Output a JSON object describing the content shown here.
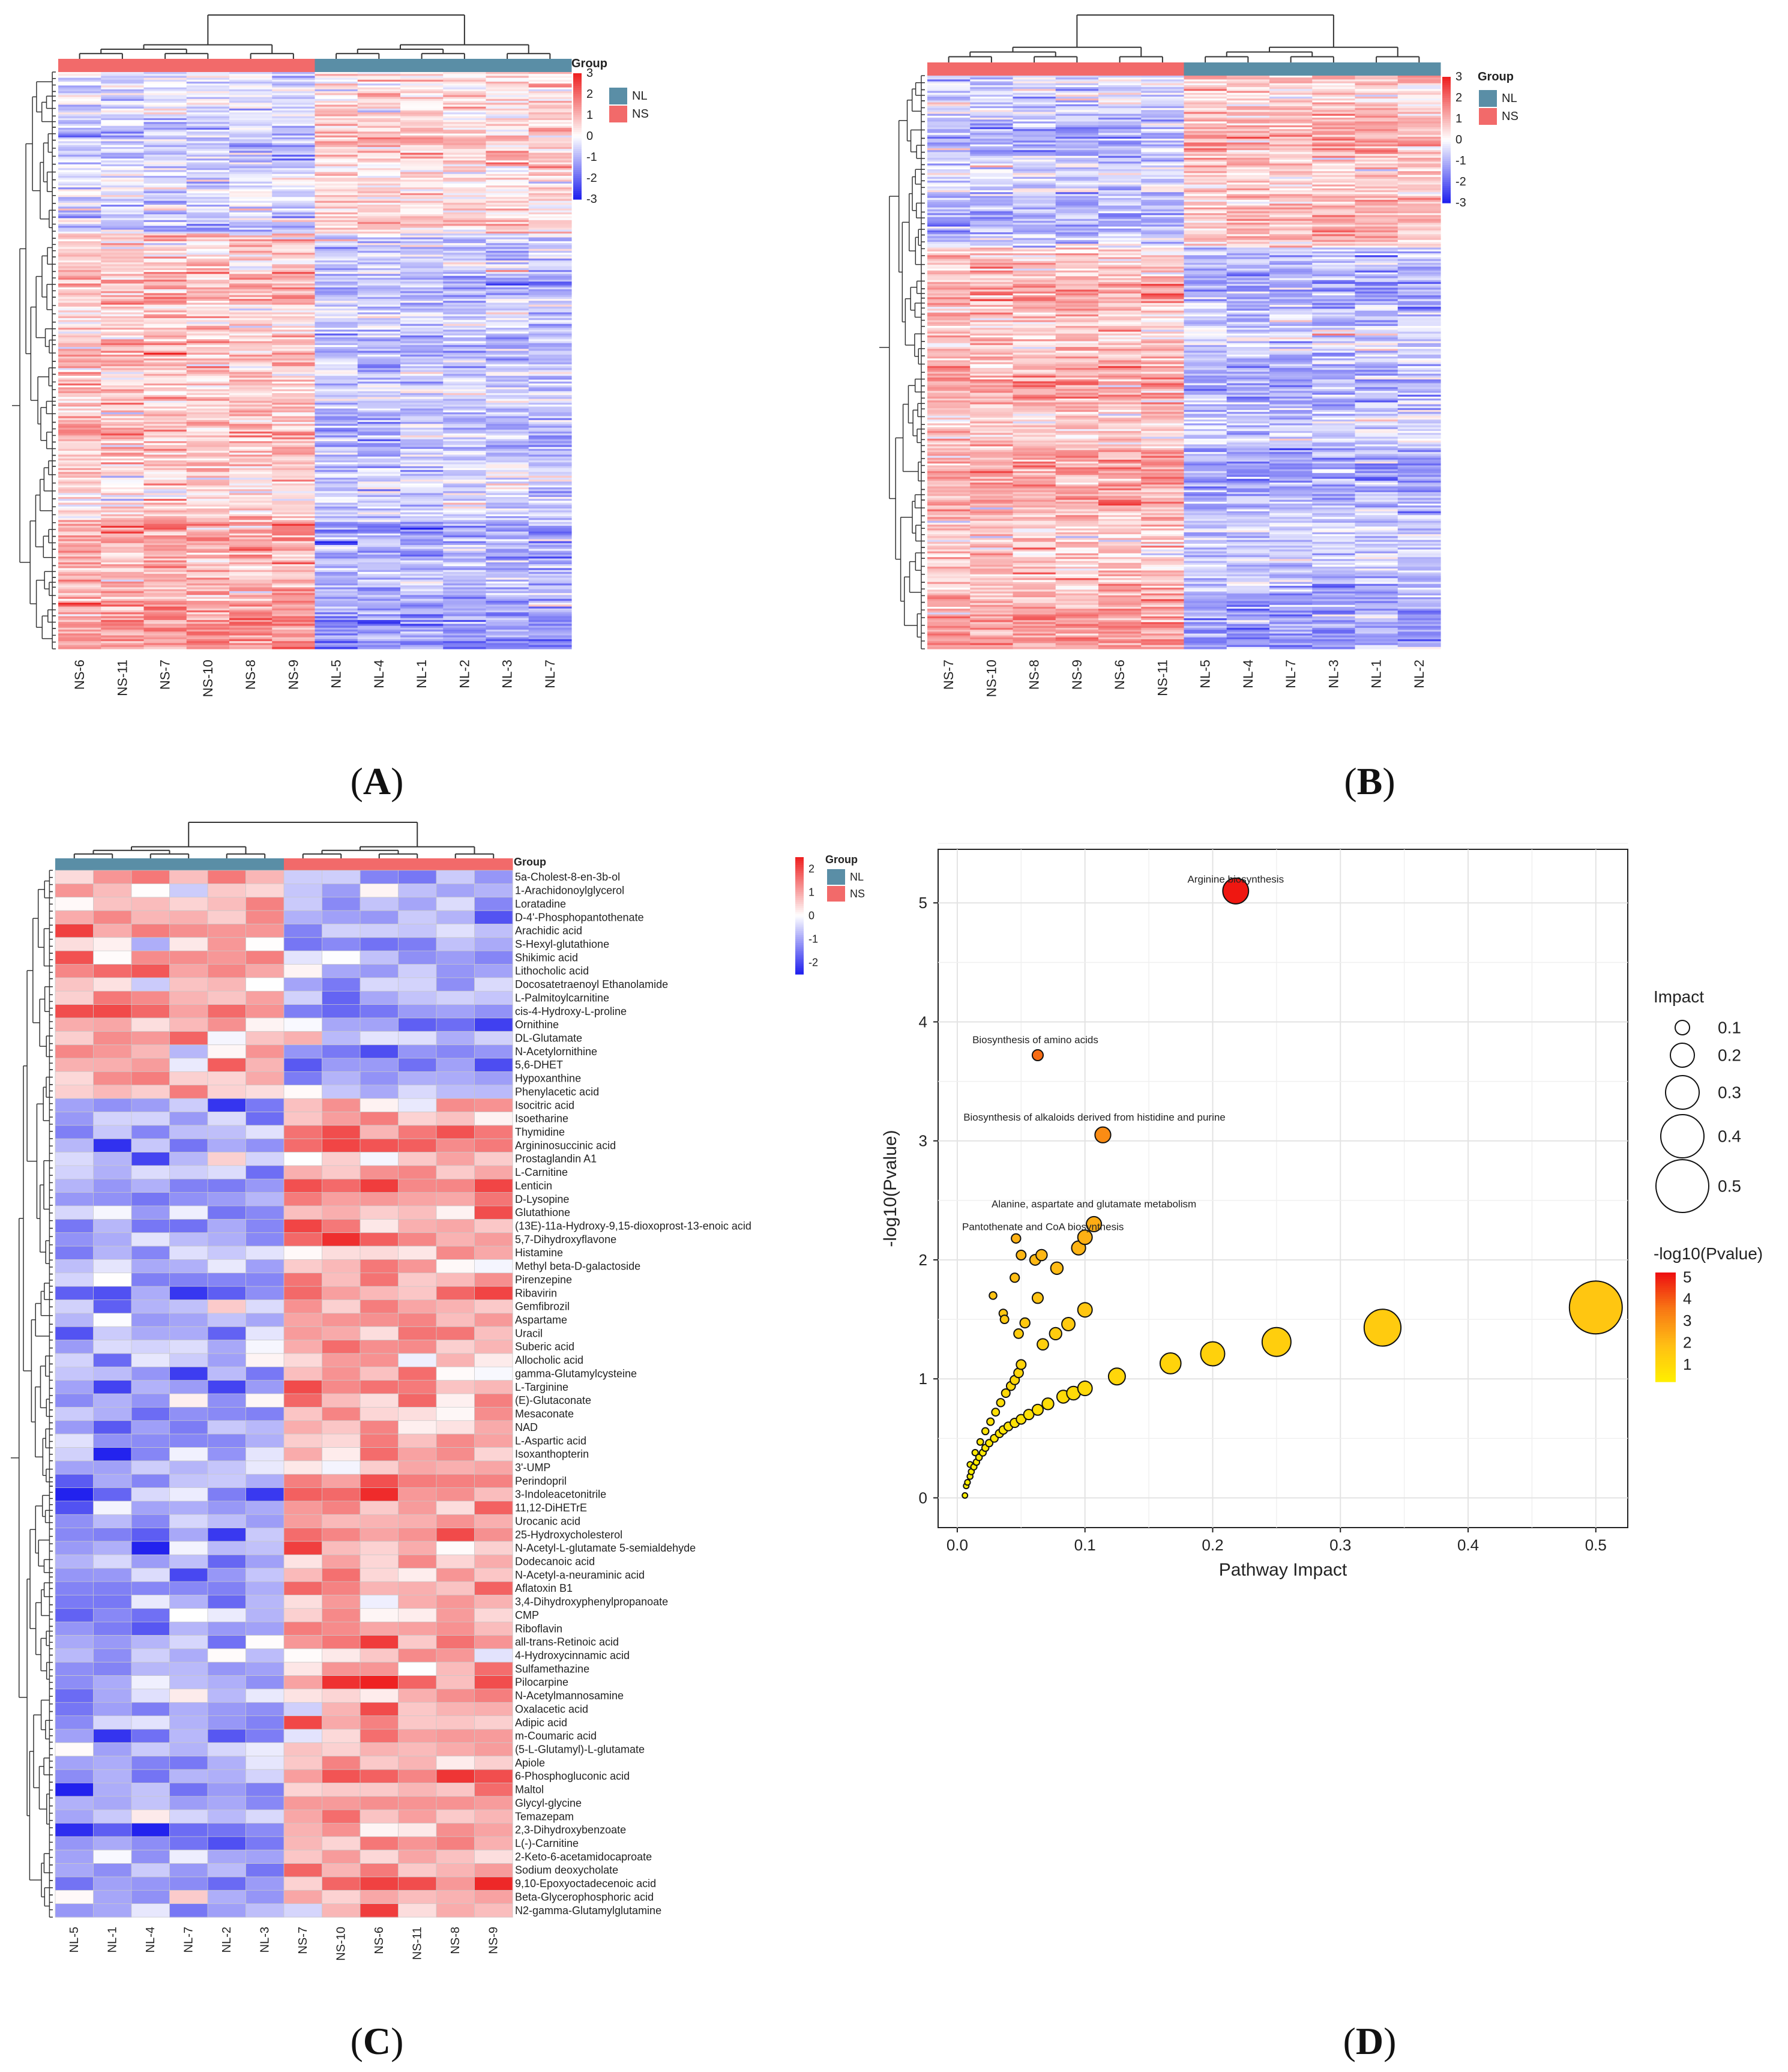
{
  "panels": {
    "A": "A",
    "B": "B",
    "C": "C",
    "D": "D"
  },
  "colors": {
    "high": "#ee2222",
    "mid": "#ffffff",
    "low": "#2222ee",
    "NL": "#5a8ea6",
    "NS": "#f26a6a",
    "bubble_low": "#ffee00",
    "bubble_high": "#ee1111"
  },
  "chart_data": [
    {
      "id": "A",
      "type": "heatmap",
      "columns": [
        "NS-6",
        "NS-11",
        "NS-7",
        "NS-10",
        "NS-8",
        "NS-9",
        "NL-5",
        "NL-4",
        "NL-1",
        "NL-2",
        "NL-3",
        "NL-7"
      ],
      "column_groups": [
        "NS",
        "NS",
        "NS",
        "NS",
        "NS",
        "NS",
        "NL",
        "NL",
        "NL",
        "NL",
        "NL",
        "NL"
      ],
      "annotation_title": "Group",
      "legend_groups": [
        "NL",
        "NS"
      ],
      "scale": {
        "min": -3,
        "max": 3,
        "ticks": [
          "3",
          "2",
          "1",
          "0",
          "-1",
          "-2",
          "-3"
        ]
      }
    },
    {
      "id": "B",
      "type": "heatmap",
      "columns": [
        "NS-7",
        "NS-10",
        "NS-8",
        "NS-9",
        "NS-6",
        "NS-11",
        "NL-5",
        "NL-4",
        "NL-7",
        "NL-3",
        "NL-1",
        "NL-2"
      ],
      "column_groups": [
        "NS",
        "NS",
        "NS",
        "NS",
        "NS",
        "NS",
        "NL",
        "NL",
        "NL",
        "NL",
        "NL",
        "NL"
      ],
      "annotation_title": "Group",
      "legend_groups": [
        "NL",
        "NS"
      ],
      "scale": {
        "min": -3,
        "max": 3,
        "ticks": [
          "3",
          "2",
          "1",
          "0",
          "-1",
          "-2",
          "-3"
        ]
      }
    },
    {
      "id": "C",
      "type": "heatmap",
      "columns": [
        "NL-5",
        "NL-1",
        "NL-4",
        "NL-7",
        "NL-2",
        "NL-3",
        "NS-7",
        "NS-10",
        "NS-6",
        "NS-11",
        "NS-8",
        "NS-9"
      ],
      "column_groups": [
        "NL",
        "NL",
        "NL",
        "NL",
        "NL",
        "NL",
        "NS",
        "NS",
        "NS",
        "NS",
        "NS",
        "NS"
      ],
      "annotation_title": "Group",
      "legend_groups": [
        "NL",
        "NS"
      ],
      "scale": {
        "min": -2.5,
        "max": 2.5,
        "ticks": [
          "2",
          "1",
          "0",
          "-1",
          "-2"
        ]
      },
      "rows": [
        "5a-Cholest-8-en-3b-ol",
        "1-Arachidonoylglycerol",
        "Loratadine",
        "D-4'-Phosphopantothenate",
        "Arachidic acid",
        "S-Hexyl-glutathione",
        "Shikimic acid",
        "Lithocholic acid",
        "Docosatetraenoyl Ethanolamide",
        "L-Palmitoylcarnitine",
        "cis-4-Hydroxy-L-proline",
        "Ornithine",
        "DL-Glutamate",
        "N-Acetylornithine",
        "5,6-DHET",
        "Hypoxanthine",
        "Phenylacetic acid",
        "Isocitric acid",
        "Isoetharine",
        "Thymidine",
        "Argininosuccinic acid",
        "Prostaglandin A1",
        "L-Carnitine",
        "Lenticin",
        "D-Lysopine",
        "Glutathione",
        "(13E)-11a-Hydroxy-9,15-dioxoprost-13-enoic acid",
        "5,7-Dihydroxyflavone",
        "Histamine",
        "Methyl beta-D-galactoside",
        "Pirenzepine",
        "Ribavirin",
        "Gemfibrozil",
        "Aspartame",
        "Uracil",
        "Suberic acid",
        "Allocholic acid",
        "gamma-Glutamylcysteine",
        "L-Targinine",
        "(E)-Glutaconate",
        "Mesaconate",
        "NAD",
        "L-Aspartic acid",
        "Isoxanthopterin",
        "3'-UMP",
        "Perindopril",
        "3-Indoleacetonitrile",
        "11,12-DiHETrE",
        "Urocanic acid",
        "25-Hydroxycholesterol",
        "N-Acetyl-L-glutamate 5-semialdehyde",
        "Dodecanoic acid",
        "N-Acetyl-a-neuraminic acid",
        "Aflatoxin B1",
        "3,4-Dihydroxyphenylpropanoate",
        "CMP",
        "Riboflavin",
        "all-trans-Retinoic acid",
        "4-Hydroxycinnamic acid",
        "Sulfamethazine",
        "Pilocarpine",
        "N-Acetylmannosamine",
        "Oxalacetic acid",
        "Adipic acid",
        "m-Coumaric acid",
        "(5-L-Glutamyl)-L-glutamate",
        "Apiole",
        "6-Phosphogluconic acid",
        "Maltol",
        "Glycyl-glycine",
        "Temazepam",
        "2,3-Dihydroxybenzoate",
        "L(-)-Carnitine",
        "2-Keto-6-acetamidocaproate",
        "Sodium deoxycholate",
        "9,10-Epoxyoctadecenoic acid",
        "Beta-Glycerophosphoric acid",
        "N2-gamma-Glutamylglutamine"
      ],
      "up_in_NL_rows": 17
    },
    {
      "id": "D",
      "type": "scatter",
      "xlabel": "Pathway Impact",
      "ylabel": "-log10(Pvalue)",
      "xlim": [
        -0.015,
        0.525
      ],
      "ylim": [
        -0.25,
        5.45
      ],
      "xticks": [
        0.0,
        0.1,
        0.2,
        0.3,
        0.4,
        0.5
      ],
      "xtick_labels": [
        "0.0",
        "0.1",
        "0.2",
        "0.3",
        "0.4",
        "0.5"
      ],
      "yticks": [
        0,
        1,
        2,
        3,
        4,
        5
      ],
      "ytick_labels": [
        "0",
        "1",
        "2",
        "3",
        "4",
        "5"
      ],
      "size_legend": {
        "title": "Impact",
        "values": [
          0.1,
          0.2,
          0.3,
          0.4,
          0.5
        ],
        "labels": [
          "0.1",
          "0.2",
          "0.3",
          "0.4",
          "0.5"
        ]
      },
      "color_legend": {
        "title": "-log10(Pvalue)",
        "range": [
          0.2,
          5.2
        ],
        "labels": [
          "5",
          "4",
          "3",
          "2",
          "1"
        ],
        "values": [
          5,
          4,
          3,
          2,
          1
        ]
      },
      "labeled_points": [
        {
          "name": "Arginine biosynthesis",
          "x": 0.218,
          "y": 5.1,
          "impact": 0.218
        },
        {
          "name": "Biosynthesis of amino acids",
          "x": 0.063,
          "y": 3.72,
          "impact": 0.063
        },
        {
          "name": "Biosynthesis of alkaloids derived from histidine and purine",
          "x": 0.114,
          "y": 3.05,
          "impact": 0.114
        },
        {
          "name": "Alanine, aspartate and glutamate metabolism",
          "x": 0.107,
          "y": 2.3,
          "impact": 0.107
        },
        {
          "name": "Pantothenate and CoA biosynthesis",
          "x": 0.1,
          "y": 2.19,
          "impact": 0.1
        }
      ],
      "points": [
        {
          "x": 0.5,
          "y": 1.6
        },
        {
          "x": 0.333,
          "y": 1.43
        },
        {
          "x": 0.25,
          "y": 1.31
        },
        {
          "x": 0.2,
          "y": 1.21
        },
        {
          "x": 0.167,
          "y": 1.13
        },
        {
          "x": 0.125,
          "y": 1.02
        },
        {
          "x": 0.1,
          "y": 0.92
        },
        {
          "x": 0.091,
          "y": 0.88
        },
        {
          "x": 0.083,
          "y": 0.85
        },
        {
          "x": 0.071,
          "y": 0.79
        },
        {
          "x": 0.063,
          "y": 0.74
        },
        {
          "x": 0.056,
          "y": 0.7
        },
        {
          "x": 0.05,
          "y": 0.66
        },
        {
          "x": 0.045,
          "y": 0.63
        },
        {
          "x": 0.04,
          "y": 0.6
        },
        {
          "x": 0.036,
          "y": 0.57
        },
        {
          "x": 0.033,
          "y": 0.54
        },
        {
          "x": 0.029,
          "y": 0.5
        },
        {
          "x": 0.025,
          "y": 0.46
        },
        {
          "x": 0.022,
          "y": 0.42
        },
        {
          "x": 0.02,
          "y": 0.38
        },
        {
          "x": 0.017,
          "y": 0.34
        },
        {
          "x": 0.015,
          "y": 0.3
        },
        {
          "x": 0.013,
          "y": 0.26
        },
        {
          "x": 0.011,
          "y": 0.22
        },
        {
          "x": 0.01,
          "y": 0.18
        },
        {
          "x": 0.008,
          "y": 0.13
        },
        {
          "x": 0.007,
          "y": 0.1
        },
        {
          "x": 0.006,
          "y": 0.02
        },
        {
          "x": 0.05,
          "y": 1.12
        },
        {
          "x": 0.048,
          "y": 1.05
        },
        {
          "x": 0.045,
          "y": 0.99
        },
        {
          "x": 0.042,
          "y": 0.94
        },
        {
          "x": 0.038,
          "y": 0.88
        },
        {
          "x": 0.034,
          "y": 0.8
        },
        {
          "x": 0.03,
          "y": 0.72
        },
        {
          "x": 0.026,
          "y": 0.64
        },
        {
          "x": 0.022,
          "y": 0.56
        },
        {
          "x": 0.018,
          "y": 0.47
        },
        {
          "x": 0.014,
          "y": 0.38
        },
        {
          "x": 0.01,
          "y": 0.28
        },
        {
          "x": 0.1,
          "y": 1.58
        },
        {
          "x": 0.087,
          "y": 1.46
        },
        {
          "x": 0.077,
          "y": 1.38
        },
        {
          "x": 0.067,
          "y": 1.29
        },
        {
          "x": 0.063,
          "y": 1.68
        },
        {
          "x": 0.053,
          "y": 1.47
        },
        {
          "x": 0.048,
          "y": 1.38
        },
        {
          "x": 0.037,
          "y": 1.5
        },
        {
          "x": 0.036,
          "y": 1.55
        },
        {
          "x": 0.028,
          "y": 1.7
        },
        {
          "x": 0.045,
          "y": 1.85
        },
        {
          "x": 0.078,
          "y": 1.93
        },
        {
          "x": 0.061,
          "y": 2.0
        },
        {
          "x": 0.05,
          "y": 2.04
        },
        {
          "x": 0.066,
          "y": 2.04
        },
        {
          "x": 0.095,
          "y": 2.1
        },
        {
          "x": 0.046,
          "y": 2.18
        }
      ]
    }
  ]
}
